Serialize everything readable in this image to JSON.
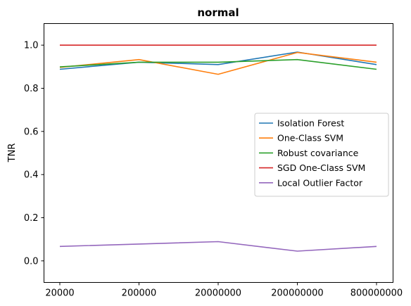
{
  "chart_data": {
    "type": "line",
    "title": "normal",
    "xlabel": "",
    "ylabel": "TNR",
    "categories": [
      "20000",
      "200000",
      "20000000",
      "200000000",
      "800000000"
    ],
    "ylim": [
      -0.1,
      1.1
    ],
    "yticks": [
      "0.0",
      "0.2",
      "0.4",
      "0.6",
      "0.8",
      "1.0"
    ],
    "grid": false,
    "legend_position": "center-right",
    "series": [
      {
        "name": "Isolation Forest",
        "color": "#1f77b4",
        "values": [
          0.888,
          0.921,
          0.91,
          0.968,
          0.91
        ]
      },
      {
        "name": "One-Class SVM",
        "color": "#ff7f0e",
        "values": [
          0.897,
          0.933,
          0.865,
          0.966,
          0.921
        ]
      },
      {
        "name": "Robust covariance",
        "color": "#2ca02c",
        "values": [
          0.899,
          0.921,
          0.921,
          0.933,
          0.888
        ]
      },
      {
        "name": "SGD One-Class SVM",
        "color": "#d62728",
        "values": [
          1.0,
          1.0,
          1.0,
          1.0,
          1.0
        ]
      },
      {
        "name": "Local Outlier Factor",
        "color": "#9467bd",
        "values": [
          0.067,
          0.078,
          0.089,
          0.045,
          0.067
        ]
      }
    ]
  }
}
